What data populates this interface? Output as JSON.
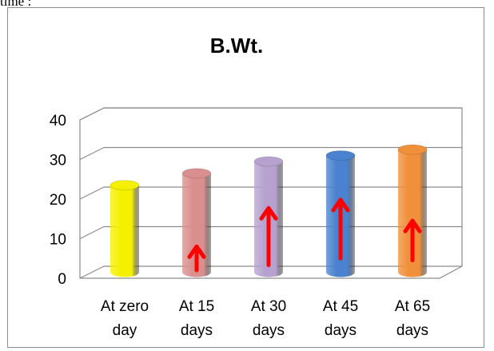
{
  "page": {
    "header_fragment": "time :"
  },
  "chart_data": {
    "type": "bar",
    "style": "3d-cylinder",
    "title": "B.Wt.",
    "xlabel": "",
    "ylabel": "",
    "ylim": [
      0,
      40
    ],
    "yticks": [
      "0",
      "10",
      "20",
      "30",
      "40"
    ],
    "grid": true,
    "legend": "none",
    "categories": [
      [
        "At zero",
        "day"
      ],
      [
        "At 15",
        "days"
      ],
      [
        "At 30",
        "days"
      ],
      [
        "At 45",
        "days"
      ],
      [
        "At 65",
        "days"
      ]
    ],
    "values": [
      22,
      25,
      28,
      29.5,
      31
    ],
    "colors": [
      "#f5f000",
      "#d98f8d",
      "#b7a2cf",
      "#4a82cf",
      "#f0903a"
    ],
    "annotations": {
      "description": "red upward arrows on bars",
      "color": "#ff0000",
      "arrows": [
        {
          "category_index": 1,
          "from": 0.5,
          "to": 6.5
        },
        {
          "category_index": 2,
          "from": 1.8,
          "to": 16.2
        },
        {
          "category_index": 3,
          "from": 3.5,
          "to": 18.3
        },
        {
          "category_index": 4,
          "from": 3.0,
          "to": 13.0
        }
      ]
    }
  }
}
